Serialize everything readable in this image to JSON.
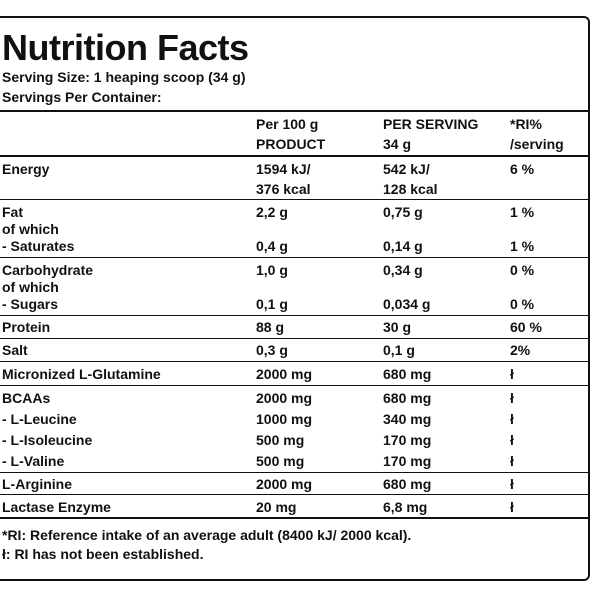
{
  "title": "Nutrition Facts",
  "serving_size": "Serving Size: 1 heaping scoop (34 g)",
  "servings_per_container": "Servings Per Container:",
  "columns": {
    "per100_line1": "Per 100 g",
    "per100_line2": "PRODUCT",
    "perserving_line1": "PER SERVING",
    "perserving_line2": "34 g",
    "ri_line1": "*RI%",
    "ri_line2": "/serving"
  },
  "rows": {
    "energy": {
      "name": "Energy",
      "per100_kj": "1594 kJ/",
      "per100_kcal": "376 kcal",
      "serving_kj": "542 kJ/",
      "serving_kcal": "128 kcal",
      "ri": "6 %"
    },
    "fat": {
      "name": "Fat",
      "per100": "2,2 g",
      "serving": "0,75 g",
      "ri": "1 %"
    },
    "fat_of_which": "of which",
    "saturates": {
      "name": "- Saturates",
      "per100": "0,4 g",
      "serving": "0,14 g",
      "ri": "1 %"
    },
    "carbohydrate": {
      "name": "Carbohydrate",
      "per100": "1,0 g",
      "serving": "0,34 g",
      "ri": "0 %"
    },
    "carb_of_which": "of which",
    "sugars": {
      "name": "- Sugars",
      "per100": "0,1 g",
      "serving": "0,034 g",
      "ri": "0 %"
    },
    "protein": {
      "name": "Protein",
      "per100": "88 g",
      "serving": "30 g",
      "ri": "60 %"
    },
    "salt": {
      "name": "Salt",
      "per100": "0,3 g",
      "serving": "0,1 g",
      "ri": "2%"
    },
    "glutamine": {
      "name": "Micronized L-Glutamine",
      "per100": "2000 mg",
      "serving": "680 mg",
      "ri": "ł"
    },
    "bcaas": {
      "name": "BCAAs",
      "per100": "2000 mg",
      "serving": "680 mg",
      "ri": "ł"
    },
    "leucine": {
      "name": "- L-Leucine",
      "per100": "1000 mg",
      "serving": "340 mg",
      "ri": "ł"
    },
    "isoleucine": {
      "name": "- L-Isoleucine",
      "per100": "500 mg",
      "serving": "170 mg",
      "ri": "ł"
    },
    "valine": {
      "name": "- L-Valine",
      "per100": "500 mg",
      "serving": "170 mg",
      "ri": "ł"
    },
    "arginine": {
      "name": "L-Arginine",
      "per100": "2000 mg",
      "serving": "680 mg",
      "ri": "ł"
    },
    "lactase": {
      "name": "Lactase Enzyme",
      "per100": "20 mg",
      "serving": "6,8 mg",
      "ri": "ł"
    }
  },
  "footnotes": {
    "ri": "*RI: Reference intake of an average adult (8400 kJ/ 2000 kcal).",
    "not_established": "ł: RI has not been established."
  }
}
